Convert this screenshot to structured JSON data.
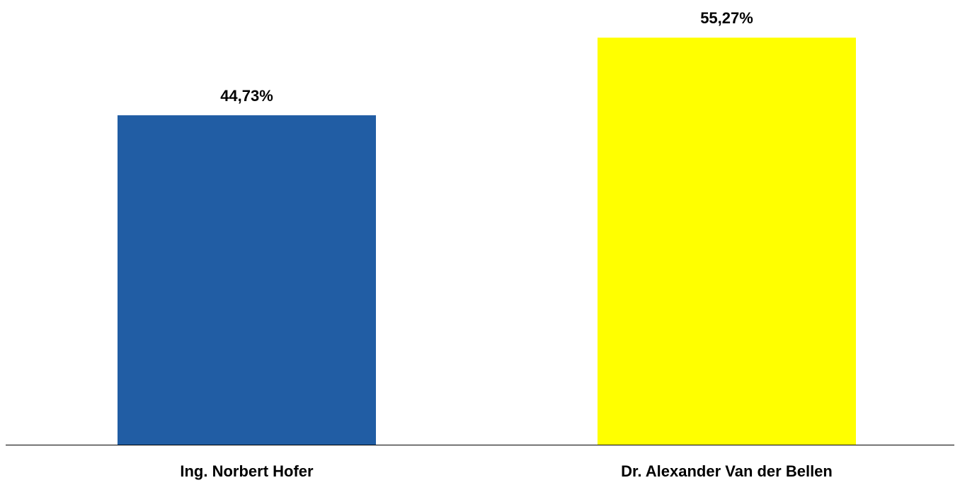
{
  "chart_data": {
    "type": "bar",
    "categories": [
      "Ing. Norbert Hofer",
      "Dr. Alexander Van der Bellen"
    ],
    "values": [
      44.73,
      55.27
    ],
    "value_labels": [
      "44,73%",
      "55,27%"
    ],
    "colors": [
      "#215da4",
      "#ffff00"
    ],
    "ylim": [
      0,
      60
    ],
    "grid": false
  }
}
